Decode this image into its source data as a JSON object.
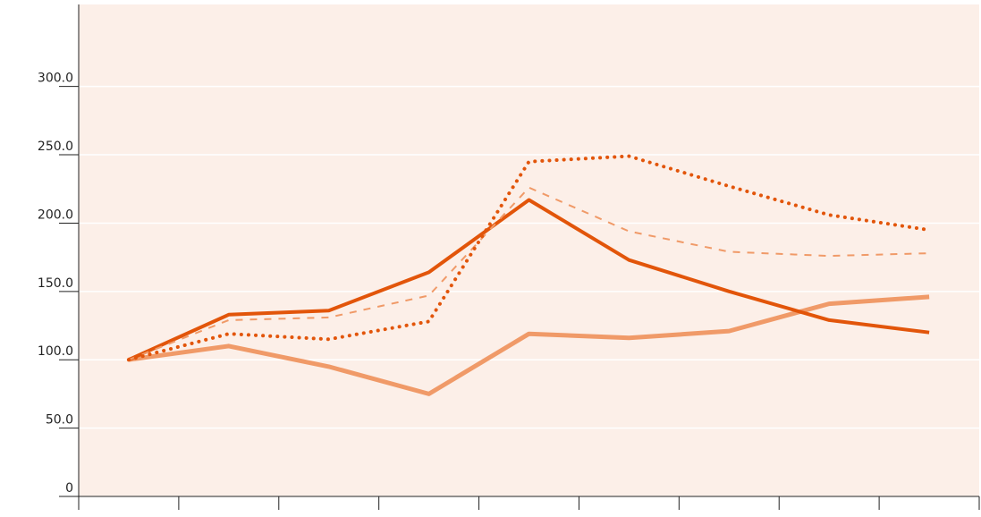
{
  "chart_data": {
    "type": "line",
    "categories": [
      null,
      null,
      null,
      null,
      null,
      null,
      null,
      null,
      null
    ],
    "series": [
      {
        "color": "#f09a68",
        "dash": "solid",
        "width": 5,
        "values": [
          100,
          110,
          95,
          75,
          119,
          116,
          121,
          141,
          146
        ]
      },
      {
        "color": "#e2550a",
        "dash": "solid",
        "width": 4,
        "values": [
          100,
          133,
          136,
          164,
          217,
          173,
          150,
          129,
          120
        ]
      },
      {
        "color": "#f09a68",
        "dash": "dashed",
        "width": 2,
        "values": [
          100,
          129,
          131,
          147,
          226,
          194,
          179,
          176,
          178
        ]
      },
      {
        "color": "#e2550a",
        "dash": "dotted",
        "width": 4,
        "values": [
          100,
          119,
          115,
          128,
          245,
          249,
          227,
          206,
          195
        ]
      }
    ],
    "ylim": [
      0,
      360
    ],
    "yticks": [
      0,
      {
        "value": 50,
        "label": "50.0"
      },
      {
        "value": 100,
        "label": "100.0"
      },
      {
        "value": 150,
        "label": "150.0"
      },
      {
        "value": 200,
        "label": "200.0"
      },
      {
        "value": 250,
        "label": "250.0"
      },
      {
        "value": 300,
        "label": "300.0"
      }
    ],
    "grid": true,
    "background": "#fcefe8"
  }
}
